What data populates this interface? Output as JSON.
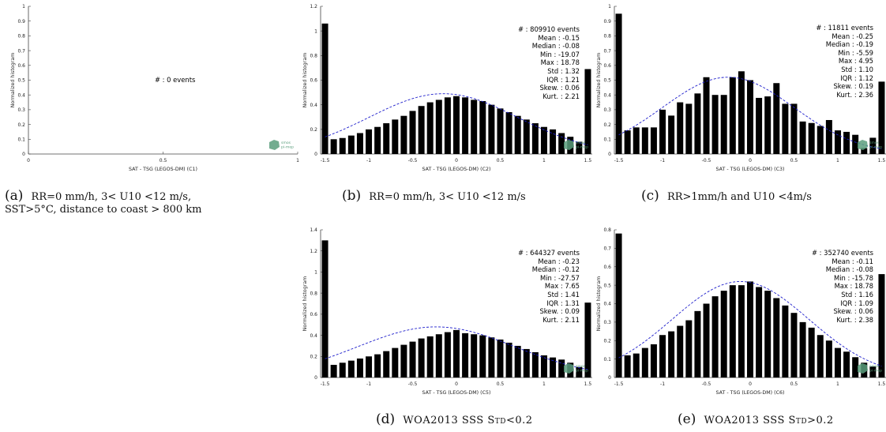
{
  "chart_data": [
    {
      "id": "a",
      "type": "bar",
      "xlabel": "SAT - TSG (LEGOS-DM) (C1)",
      "ylabel": "Normalized histogram",
      "xlim": [
        0,
        1
      ],
      "ylim": [
        0,
        1
      ],
      "xticks": [
        "0",
        "0.5",
        "1"
      ],
      "xtick_values": [
        0,
        0.5,
        1
      ],
      "yticks": [
        "0",
        "0.1",
        "0.2",
        "0.3",
        "0.4",
        "0.5",
        "0.6",
        "0.7",
        "0.8",
        "0.9",
        "1"
      ],
      "ytick_values": [
        0,
        0.1,
        0.2,
        0.3,
        0.4,
        0.5,
        0.6,
        0.7,
        0.8,
        0.9,
        1
      ],
      "bins": [],
      "values": [],
      "empty_text": "# : 0 events",
      "stats": [],
      "gauss": null
    },
    {
      "id": "b",
      "type": "bar",
      "xlabel": "SAT - TSG (LEGOS-DM) (C2)",
      "ylabel": "Normalized histogram",
      "xlim": [
        -1.55,
        1.55
      ],
      "ylim": [
        0,
        1.2
      ],
      "xticks": [
        "-1.5",
        "-1",
        "-0.5",
        "0",
        "0.5",
        "1",
        "1.5"
      ],
      "xtick_values": [
        -1.5,
        -1,
        -0.5,
        0,
        0.5,
        1,
        1.5
      ],
      "yticks": [
        "0",
        "0.2",
        "0.4",
        "0.6",
        "0.8",
        "1",
        "1.2"
      ],
      "ytick_values": [
        0,
        0.2,
        0.4,
        0.6,
        0.8,
        1,
        1.2
      ],
      "bins": [
        -1.5,
        -1.4,
        -1.3,
        -1.2,
        -1.1,
        -1.0,
        -0.9,
        -0.8,
        -0.7,
        -0.6,
        -0.5,
        -0.4,
        -0.3,
        -0.2,
        -0.1,
        0.0,
        0.1,
        0.2,
        0.3,
        0.4,
        0.5,
        0.6,
        0.7,
        0.8,
        0.9,
        1.0,
        1.1,
        1.2,
        1.3,
        1.4,
        1.5
      ],
      "values": [
        1.06,
        0.12,
        0.13,
        0.15,
        0.17,
        0.2,
        0.22,
        0.25,
        0.28,
        0.31,
        0.35,
        0.39,
        0.42,
        0.44,
        0.46,
        0.47,
        0.46,
        0.44,
        0.43,
        0.4,
        0.37,
        0.34,
        0.31,
        0.28,
        0.25,
        0.22,
        0.2,
        0.17,
        0.14,
        0.1,
        0.69
      ],
      "stats": [
        "# : 809910 events",
        "Mean : -0.15",
        "Median : -0.08",
        "Min : -19.07",
        "Max : 18.78",
        "Std : 1.32",
        "IQR : 1.21",
        "Skew. : 0.06",
        "Kurt. : 2.21"
      ],
      "gauss": {
        "mean": -0.15,
        "peak": 0.49,
        "sigma": 0.85
      }
    },
    {
      "id": "c",
      "type": "bar",
      "xlabel": "SAT - TSG (LEGOS-DM) (C3)",
      "ylabel": "Normalized histogram",
      "xlim": [
        -1.55,
        1.55
      ],
      "ylim": [
        0,
        1
      ],
      "xticks": [
        "-1.5",
        "-1",
        "-0.5",
        "0",
        "0.5",
        "1",
        "1.5"
      ],
      "xtick_values": [
        -1.5,
        -1,
        -0.5,
        0,
        0.5,
        1,
        1.5
      ],
      "yticks": [
        "0",
        "0.1",
        "0.2",
        "0.3",
        "0.4",
        "0.5",
        "0.6",
        "0.7",
        "0.8",
        "0.9",
        "1"
      ],
      "ytick_values": [
        0,
        0.1,
        0.2,
        0.3,
        0.4,
        0.5,
        0.6,
        0.7,
        0.8,
        0.9,
        1
      ],
      "bins": [
        -1.5,
        -1.4,
        -1.3,
        -1.2,
        -1.1,
        -1.0,
        -0.9,
        -0.8,
        -0.7,
        -0.6,
        -0.5,
        -0.4,
        -0.3,
        -0.2,
        -0.1,
        0.0,
        0.1,
        0.2,
        0.3,
        0.4,
        0.5,
        0.6,
        0.7,
        0.8,
        0.9,
        1.0,
        1.1,
        1.2,
        1.3,
        1.4,
        1.5
      ],
      "values": [
        0.95,
        0.16,
        0.18,
        0.18,
        0.18,
        0.3,
        0.26,
        0.35,
        0.34,
        0.41,
        0.52,
        0.4,
        0.4,
        0.52,
        0.56,
        0.5,
        0.38,
        0.39,
        0.48,
        0.34,
        0.34,
        0.22,
        0.21,
        0.19,
        0.23,
        0.16,
        0.15,
        0.13,
        0.04,
        0.11,
        0.49
      ],
      "stats": [
        "# : 11811 events",
        "Mean : -0.25",
        "Median : -0.19",
        "Min : -5.59",
        "Max : 4.95",
        "Std : 1.10",
        "IQR : 1.12",
        "Skew. : 0.19",
        "Kurt. : 2.36"
      ],
      "gauss": {
        "mean": -0.25,
        "peak": 0.52,
        "sigma": 0.75
      }
    },
    {
      "id": "d",
      "type": "bar",
      "xlabel": "SAT - TSG (LEGOS-DM) (C5)",
      "ylabel": "Normalized histogram",
      "xlim": [
        -1.55,
        1.55
      ],
      "ylim": [
        0,
        1.4
      ],
      "xticks": [
        "-1.5",
        "-1",
        "-0.5",
        "0",
        "0.5",
        "1",
        "1.5"
      ],
      "xtick_values": [
        -1.5,
        -1,
        -0.5,
        0,
        0.5,
        1,
        1.5
      ],
      "yticks": [
        "0",
        "0.2",
        "0.4",
        "0.6",
        "0.8",
        "1",
        "1.2",
        "1.4"
      ],
      "ytick_values": [
        0,
        0.2,
        0.4,
        0.6,
        0.8,
        1,
        1.2,
        1.4
      ],
      "bins": [
        -1.5,
        -1.4,
        -1.3,
        -1.2,
        -1.1,
        -1.0,
        -0.9,
        -0.8,
        -0.7,
        -0.6,
        -0.5,
        -0.4,
        -0.3,
        -0.2,
        -0.1,
        0.0,
        0.1,
        0.2,
        0.3,
        0.4,
        0.5,
        0.6,
        0.7,
        0.8,
        0.9,
        1.0,
        1.1,
        1.2,
        1.3,
        1.4,
        1.5
      ],
      "values": [
        1.3,
        0.12,
        0.14,
        0.16,
        0.18,
        0.2,
        0.22,
        0.25,
        0.28,
        0.31,
        0.34,
        0.37,
        0.39,
        0.41,
        0.43,
        0.45,
        0.42,
        0.41,
        0.4,
        0.38,
        0.36,
        0.33,
        0.3,
        0.27,
        0.24,
        0.21,
        0.19,
        0.17,
        0.14,
        0.1,
        0.71
      ],
      "stats": [
        "# : 644327 events",
        "Mean : -0.23",
        "Median : -0.12",
        "Min : -27.57",
        "Max : 7.65",
        "Std : 1.41",
        "IQR : 1.31",
        "Skew. : 0.09",
        "Kurt. : 2.11"
      ],
      "gauss": {
        "mean": -0.23,
        "peak": 0.48,
        "sigma": 0.9
      }
    },
    {
      "id": "e",
      "type": "bar",
      "xlabel": "SAT - TSG (LEGOS-DM) (C6)",
      "ylabel": "Normalized histogram",
      "xlim": [
        -1.55,
        1.55
      ],
      "ylim": [
        0,
        0.8
      ],
      "xticks": [
        "-1.5",
        "-1",
        "-0.5",
        "0",
        "0.5",
        "1",
        "1.5"
      ],
      "xtick_values": [
        -1.5,
        -1,
        -0.5,
        0,
        0.5,
        1,
        1.5
      ],
      "yticks": [
        "0",
        "0.1",
        "0.2",
        "0.3",
        "0.4",
        "0.5",
        "0.6",
        "0.7",
        "0.8"
      ],
      "ytick_values": [
        0,
        0.1,
        0.2,
        0.3,
        0.4,
        0.5,
        0.6,
        0.7,
        0.8
      ],
      "bins": [
        -1.5,
        -1.4,
        -1.3,
        -1.2,
        -1.1,
        -1.0,
        -0.9,
        -0.8,
        -0.7,
        -0.6,
        -0.5,
        -0.4,
        -0.3,
        -0.2,
        -0.1,
        0.0,
        0.1,
        0.2,
        0.3,
        0.4,
        0.5,
        0.6,
        0.7,
        0.8,
        0.9,
        1.0,
        1.1,
        1.2,
        1.3,
        1.4,
        1.5
      ],
      "values": [
        0.78,
        0.12,
        0.13,
        0.16,
        0.18,
        0.23,
        0.25,
        0.28,
        0.31,
        0.36,
        0.4,
        0.44,
        0.47,
        0.5,
        0.5,
        0.52,
        0.49,
        0.47,
        0.43,
        0.39,
        0.35,
        0.3,
        0.27,
        0.23,
        0.2,
        0.16,
        0.14,
        0.11,
        0.08,
        0.06,
        0.56
      ],
      "stats": [
        "# : 352740 events",
        "Mean : -0.11",
        "Median : -0.08",
        "Min : -15.78",
        "Max : 18.78",
        "Std : 1.16",
        "IQR : 1.09",
        "Skew. : 0.06",
        "Kurt. : 2.38"
      ],
      "gauss": {
        "mean": -0.11,
        "peak": 0.52,
        "sigma": 0.78
      }
    }
  ],
  "captions": {
    "a_label": "(a)",
    "a_line1": "RR=0 mm/h, 3< U10 <12 m/s,",
    "a_line2": "SST>5°C, distance to coast > 800 km",
    "b_label": "(b)",
    "b_text": "RR=0 mm/h, 3< U10 <12 m/s",
    "c_label": "(c)",
    "c_text": "RR>1mm/h and U10 <4m/s",
    "d_label": "(d)",
    "d_text": "WOA2013 SSS Std<0.2",
    "e_label": "(e)",
    "e_text": "WOA2013 SSS Std>0.2"
  },
  "logo": {
    "line1": "smos",
    "line2": "pi-mep",
    "color": "#5a9e7c"
  },
  "colors": {
    "bar": "#000000",
    "gauss": "#1f1fcc",
    "axis": "#444444"
  }
}
